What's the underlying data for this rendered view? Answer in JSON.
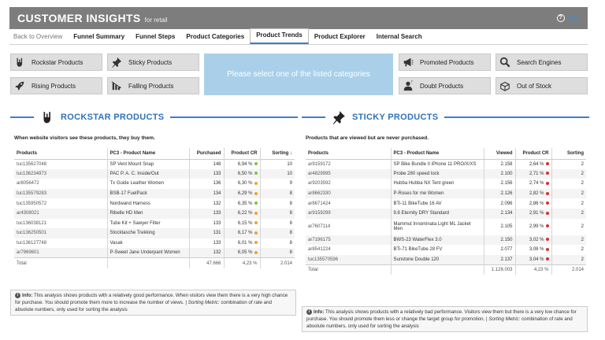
{
  "header": {
    "title": "CUSTOMER INSIGHTS",
    "subtitle": "for retail",
    "help_label": "Help"
  },
  "tabs": [
    {
      "label": "Back to Overview"
    },
    {
      "label": "Funnel Summary"
    },
    {
      "label": "Funnel Steps"
    },
    {
      "label": "Product Categories"
    },
    {
      "label": "Product Trends"
    },
    {
      "label": "Product Explorer"
    },
    {
      "label": "Internal Search"
    }
  ],
  "categories": {
    "rockstar": "Rockstar Products",
    "sticky": "Sticky Products",
    "rising": "Rising Products",
    "falling": "Falling Products",
    "promoted": "Promoted Products",
    "search": "Search Engines",
    "doubt": "Doubt Products",
    "outofstock": "Out of Stock"
  },
  "prompt": "Please select one of the listed categories",
  "colors": {
    "accent": "#2f73b8",
    "header_bg": "#7d7d7d",
    "good": "#7cc242",
    "warn": "#f0a030",
    "bad": "#d9302c"
  },
  "rockstar": {
    "title": "ROCKSTAR PRODUCTS",
    "subtitle": "When website visitors see these products, they buy them.",
    "columns": [
      "Products",
      "PC3 - Product Name",
      "Purchased",
      "Product CR",
      "Sorting ↓"
    ],
    "rows": [
      {
        "id": "tuc135627048",
        "name": "SP Vent Mount Snap",
        "purchased": "148",
        "cr": "6,94 %",
        "status": "good",
        "sort": "10"
      },
      {
        "id": "tuc136234973",
        "name": "PAC P. A. C. Inside/Out",
        "purchased": "133",
        "cr": "6,50 %",
        "status": "good",
        "sort": "10"
      },
      {
        "id": "ar8056472",
        "name": "Tx Guide Leather Women",
        "purchased": "136",
        "cr": "6,30 %",
        "status": "warn",
        "sort": "9"
      },
      {
        "id": "tuc135579283",
        "name": "BSB-17 FuelPack",
        "purchased": "134",
        "cr": "6,29 %",
        "status": "warn",
        "sort": "8"
      },
      {
        "id": "tuc135950572",
        "name": "Nordwand Harness",
        "purchased": "132",
        "cr": "6,35 %",
        "status": "good",
        "sort": "8"
      },
      {
        "id": "ar4308021",
        "name": "Ribelle HD Men",
        "purchased": "133",
        "cr": "6,22 %",
        "status": "warn",
        "sort": "8"
      },
      {
        "id": "tuc136038121",
        "name": "Tube Kit + Sawyer Filter",
        "purchased": "133",
        "cr": "6,15 %",
        "status": "warn",
        "sort": "8"
      },
      {
        "id": "tuc136250501",
        "name": "Stocktasche Trekking",
        "purchased": "131",
        "cr": "6,17 %",
        "status": "warn",
        "sort": "8"
      },
      {
        "id": "tuc136127748",
        "name": "Vasak",
        "purchased": "133",
        "cr": "6,01 %",
        "status": "warn",
        "sort": "8"
      },
      {
        "id": "ar7969601",
        "name": "P-Sweet Jane Underpant Women",
        "purchased": "132",
        "cr": "6,05 %",
        "status": "warn",
        "sort": "8"
      }
    ],
    "total": {
      "label": "Total",
      "purchased": "47.666",
      "cr": "4,23 %",
      "sort": "2.014"
    },
    "info_label": "Info:",
    "info_text": "This analysis shows products with a relatively good performance. When visitors view them there is a very high chance for purchase. You should promote them more to increase the number of views. |",
    "info_metric_label": "Sorting Metric:",
    "info_metric_text": "combination of rate and absolute numbers, only used for sorting the analysis"
  },
  "sticky": {
    "title": "STICKY PRODUCTS",
    "subtitle": "Products that are viewed but are never purchased.",
    "columns": [
      "Products",
      "PC3 - Product Name",
      "Viewed",
      "Product CR",
      "Sorting"
    ],
    "rows": [
      {
        "id": "ar9159172",
        "name": "SP Bike Bundle II iPhone 11 PRO/X/XS",
        "viewed": "2.158",
        "cr": "2,64 %",
        "status": "bad",
        "sort": "2"
      },
      {
        "id": "ar4829995",
        "name": "Probe 280 speed lock",
        "viewed": "2.100",
        "cr": "2,71 %",
        "status": "bad",
        "sort": "2"
      },
      {
        "id": "ar9203592",
        "name": "Hubba Hubba NX Tent green",
        "viewed": "2.156",
        "cr": "2,74 %",
        "status": "bad",
        "sort": "2"
      },
      {
        "id": "ar8662330",
        "name": "P-Roses for me Women",
        "viewed": "2.126",
        "cr": "2,82 %",
        "status": "bad",
        "sort": "2"
      },
      {
        "id": "ar8671424",
        "name": "BTi-11 BikeTube 16 AV",
        "viewed": "2.096",
        "cr": "2,86 %",
        "status": "bad",
        "sort": "2"
      },
      {
        "id": "ar9159299",
        "name": "9.8 Eternity DRY Standard",
        "viewed": "2.134",
        "cr": "2,91 %",
        "status": "bad",
        "sort": "2"
      },
      {
        "id": "ar7607114",
        "name": "Mammut Innominata Light ML Jacket Men",
        "viewed": "2.105",
        "cr": "2,99 %",
        "status": "bad",
        "sort": "2"
      },
      {
        "id": "ar7196175",
        "name": "BWS-23 WaterFlex 3.0",
        "viewed": "2.150",
        "cr": "3,02 %",
        "status": "bad",
        "sort": "2"
      },
      {
        "id": "ar8541224",
        "name": "BTi-71 BikeTube 28 FV",
        "viewed": "2.077",
        "cr": "3,08 %",
        "status": "bad",
        "sort": "2"
      },
      {
        "id": "tuc135570596",
        "name": "Sunstone Double 120",
        "viewed": "2.137",
        "cr": "3,04 %",
        "status": "bad",
        "sort": "2"
      }
    ],
    "total": {
      "label": "Total",
      "viewed": "1.128.003",
      "cr": "4,23 %",
      "sort": "2.014"
    },
    "info_label": "Info:",
    "info_text": "This analysis shows products with a relatively bad performance. Visitors view them but there is a very low chance for purchase. You should promote them less or change the target group for promotion. |",
    "info_metric_label": "Sorting Metric:",
    "info_metric_text": "combination of rate and absolute numbers, only used for sorting the analysis"
  }
}
